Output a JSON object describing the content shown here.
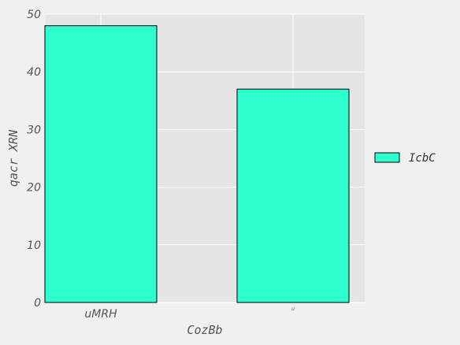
{
  "chart_data": {
    "type": "bar",
    "categories": [
      "uMRH",
      "u"
    ],
    "series": [
      {
        "name": "IcbC",
        "values": [
          48,
          37
        ]
      }
    ],
    "xlabel": "CozBb",
    "ylabel": "qacr XRN",
    "ylim": [
      0,
      50
    ],
    "yticks": [
      0,
      10,
      20,
      30,
      40,
      50
    ],
    "grid": true,
    "legend": "right",
    "colors": {
      "bar": "#2effce",
      "bar_edge": "#000000",
      "plot_bg": "#e5e5e5",
      "grid": "#ffffff",
      "page_bg": "#f0f0f0",
      "text": "#555555"
    }
  }
}
